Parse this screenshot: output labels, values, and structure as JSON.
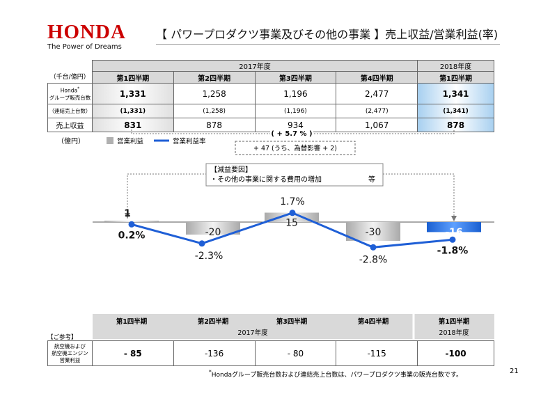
{
  "header": {
    "logo": "HONDA",
    "tagline": "The Power of Dreams",
    "title": "【 パワープロダクツ事業及びその他の事業 】売上収益/営業利益(率)"
  },
  "table": {
    "year_2017": "2017年度",
    "year_2018": "2018年度",
    "unit": "（千台/億円）",
    "quarters": [
      "第1四半期",
      "第2四半期",
      "第3四半期",
      "第4四半期",
      "第1四半期"
    ],
    "sales_units_label_1": "Honda",
    "sales_units_label_sup": "*",
    "sales_units_label_2": "グループ販売台数",
    "consolidated_label": "（連結売上台数）",
    "sales_units": [
      "1,331",
      "1,258",
      "1,196",
      "2,477",
      "1,341"
    ],
    "consolidated_units": [
      "(1,331)",
      "(1,258)",
      "(1,196)",
      "(2,477)",
      "(1,341)"
    ],
    "revenue_label": "売上収益",
    "revenue": [
      "831",
      "878",
      "934",
      "1,067",
      "878"
    ],
    "revenue_change": "( + 5.7 % )"
  },
  "legend": {
    "unit": "（億円）",
    "bar": "営業利益",
    "line": "営業利益率"
  },
  "annotations": {
    "delta_box": "+ 47 (うち、為替影響 + 2)",
    "reason_title": "【減益要因】",
    "reason_item": "・その他の事業に関する費用の増加",
    "reason_etc": "等"
  },
  "chart_data": {
    "type": "bar",
    "categories": [
      "第1四半期",
      "第2四半期",
      "第3四半期",
      "第4四半期",
      "第1四半期"
    ],
    "groups": [
      "2017年度",
      "2017年度",
      "2017年度",
      "2017年度",
      "2018年度"
    ],
    "series": [
      {
        "name": "営業利益",
        "values": [
          1,
          -20,
          15,
          -30,
          -16
        ],
        "labels": [
          "1",
          "-20",
          "15",
          "-30",
          "-16"
        ]
      },
      {
        "name": "営業利益率",
        "values": [
          0.2,
          -2.3,
          1.7,
          -2.8,
          -1.8
        ],
        "labels": [
          "0.2%",
          "-2.3%",
          "1.7%",
          "-2.8%",
          "-1.8%"
        ]
      }
    ],
    "colors": {
      "bar": "#c8c8c8",
      "bar_highlight": "#1f6ee0",
      "line": "#1f5fd6"
    }
  },
  "axis": {
    "year_2017": "2017年度",
    "year_2018": "2018年度"
  },
  "reference": {
    "title": "【ご参考】",
    "label_1": "航空機および",
    "label_2": "航空機エンジン",
    "label_3": "営業利益",
    "values": [
      "- 85",
      "-136",
      "- 80",
      "-115",
      "-100"
    ]
  },
  "footnote": {
    "mark": "*",
    "text": "Hondaグループ販売台数および連結売上台数は、パワープロダクツ事業の販売台数です。"
  },
  "page_number": "21"
}
